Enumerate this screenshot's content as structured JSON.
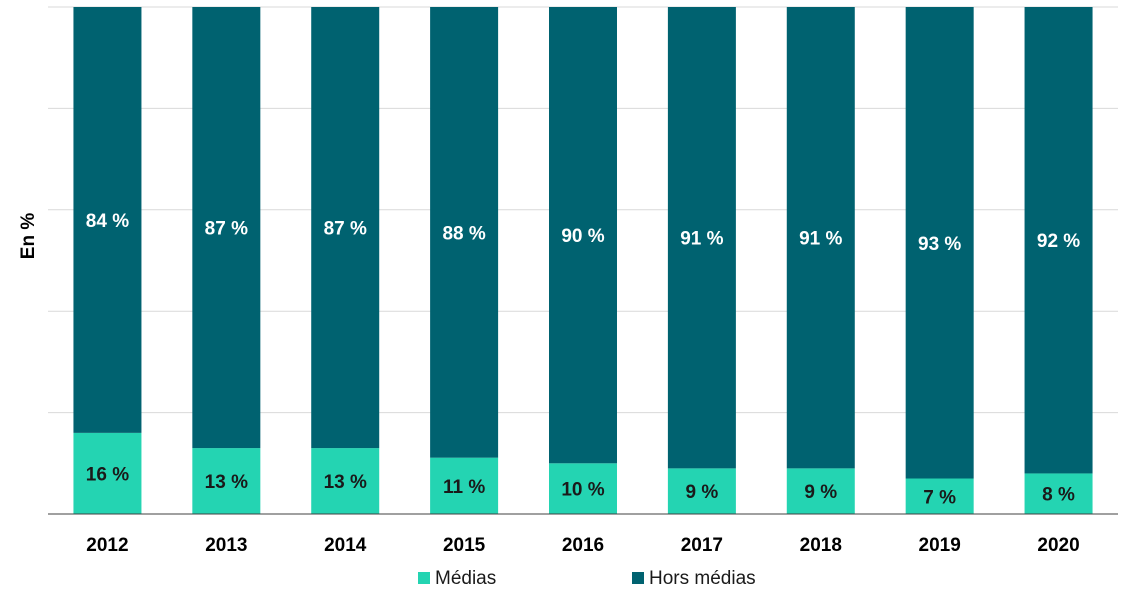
{
  "chart_data": {
    "type": "bar",
    "stacked": true,
    "ylabel": "En %",
    "ylim": [
      0,
      100
    ],
    "grid": true,
    "legend_position": "bottom",
    "categories": [
      "2012",
      "2013",
      "2014",
      "2015",
      "2016",
      "2017",
      "2018",
      "2019",
      "2020"
    ],
    "series": [
      {
        "name": "Médias",
        "color": "#24d4b2",
        "label_color": "#1a1a1a",
        "values": [
          16,
          13,
          13,
          11,
          10,
          9,
          9,
          7,
          8
        ],
        "labels": [
          "16 %",
          "13 %",
          "13 %",
          "11 %",
          "10 %",
          "9 %",
          "9 %",
          "7 %",
          "8 %"
        ]
      },
      {
        "name": "Hors médias",
        "color": "#006270",
        "label_color": "#ffffff",
        "values": [
          84,
          87,
          87,
          88,
          90,
          91,
          91,
          93,
          92
        ],
        "labels": [
          "84 %",
          "87 %",
          "87 %",
          "88 %",
          "90 %",
          "91 %",
          "91 %",
          "93 %",
          "92 %"
        ]
      }
    ]
  }
}
